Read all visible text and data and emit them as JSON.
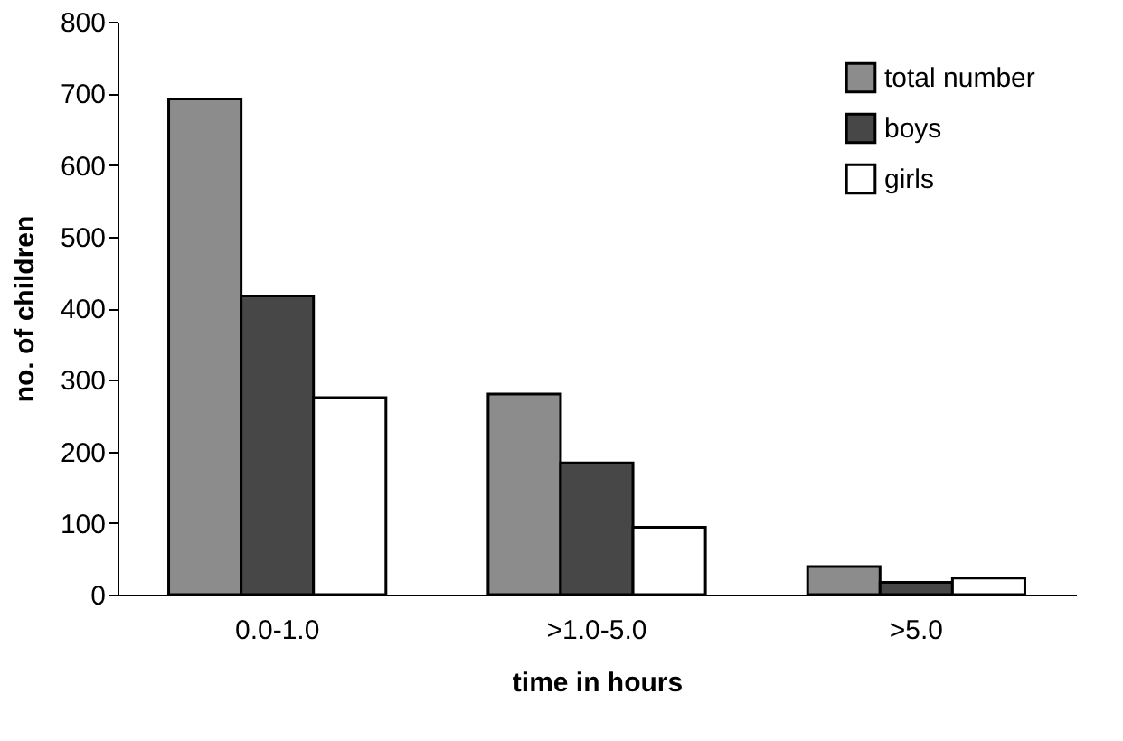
{
  "chart_data": {
    "type": "bar",
    "xlabel": "time in hours",
    "ylabel": "no. of children",
    "categories": [
      "0.0-1.0",
      ">1.0-5.0",
      ">5.0"
    ],
    "series": [
      {
        "name": "total number",
        "color": "#8c8c8c",
        "values": [
          692,
          280,
          39
        ]
      },
      {
        "name": "boys",
        "color": "#474747",
        "values": [
          417,
          184,
          17
        ]
      },
      {
        "name": "girls",
        "color": "#ffffff",
        "values": [
          275,
          94,
          23
        ]
      }
    ],
    "ylim": [
      0,
      800
    ],
    "yticks": [
      0,
      100,
      200,
      300,
      400,
      500,
      600,
      700,
      800
    ],
    "grid": false,
    "legend": "top right"
  }
}
